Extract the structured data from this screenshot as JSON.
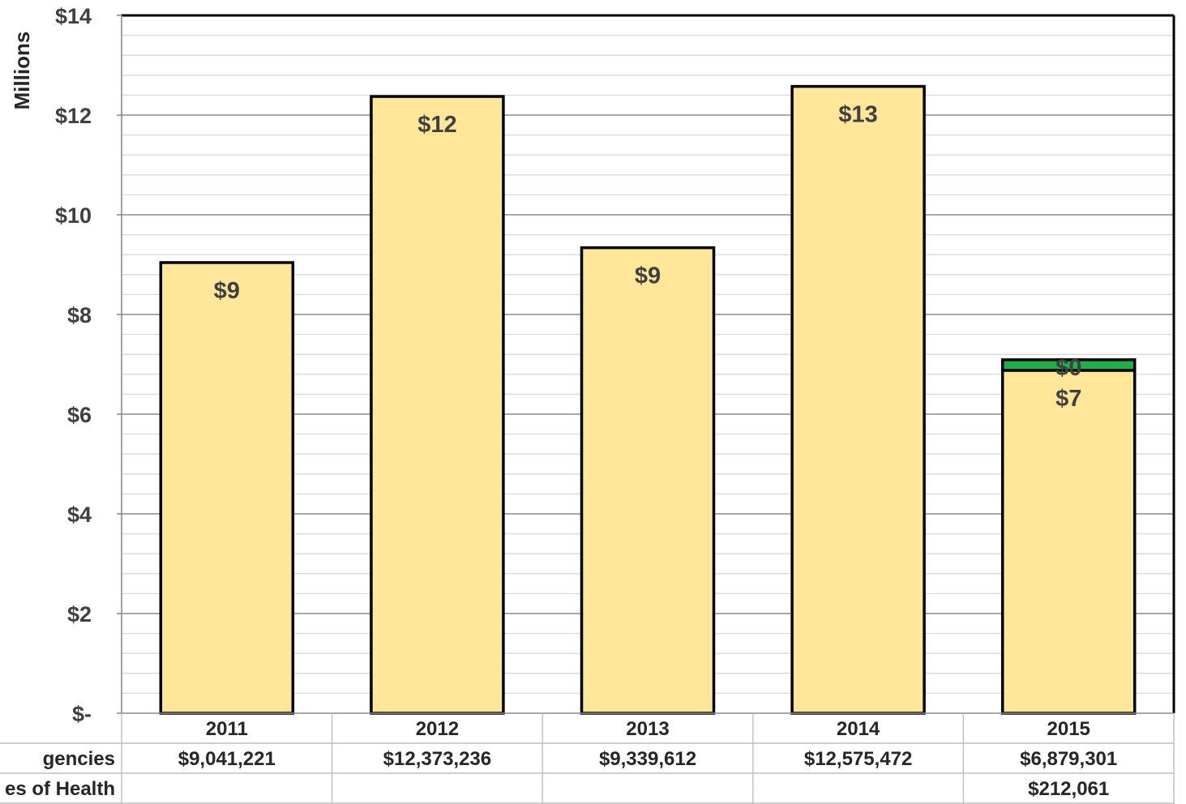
{
  "chart_data": {
    "type": "bar",
    "stacked": true,
    "ylabel": "Millions",
    "ylim": [
      0,
      14
    ],
    "y_tick_step": 2,
    "y_tick_labels": [
      "$-",
      "$2",
      "$4",
      "$6",
      "$8",
      "$10",
      "$12",
      "$14"
    ],
    "grid": true,
    "categories": [
      "2011",
      "2012",
      "2013",
      "2014",
      "2015"
    ],
    "series": [
      {
        "row_label": "gencies",
        "color": "#FFE699",
        "values": [
          9.041221,
          12.373236,
          9.339612,
          12.575472,
          6.879301
        ],
        "bar_labels": [
          "$9",
          "$12",
          "$9",
          "$13",
          "$7"
        ],
        "table_values": [
          "$9,041,221",
          "$12,373,236",
          "$9,339,612",
          "$12,575,472",
          "$6,879,301"
        ]
      },
      {
        "row_label": "es of Health",
        "color": "#1DB04B",
        "values": [
          null,
          null,
          null,
          null,
          0.212061
        ],
        "bar_labels": [
          "",
          "",
          "",
          "",
          "$0"
        ],
        "table_values": [
          "",
          "",
          "",
          "",
          "$212,061"
        ]
      }
    ]
  }
}
